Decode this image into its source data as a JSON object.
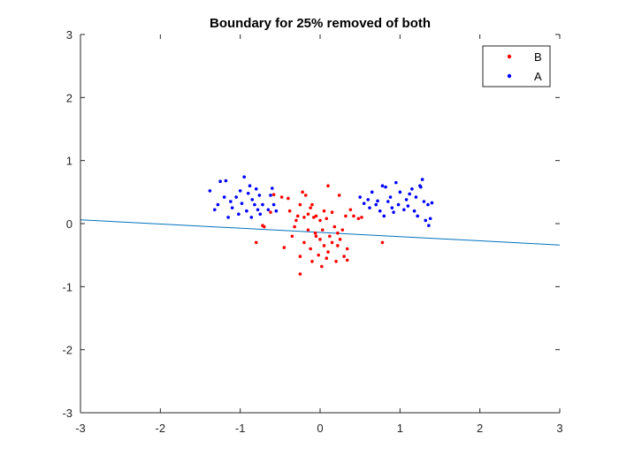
{
  "chart_data": {
    "type": "scatter",
    "title": "Boundary for 25% removed of both",
    "xlabel": "",
    "ylabel": "",
    "xlim": [
      -3,
      3
    ],
    "ylim": [
      -3,
      3
    ],
    "x_ticks": [
      -3,
      -2,
      -1,
      0,
      1,
      2,
      3
    ],
    "y_ticks": [
      -3,
      -2,
      -1,
      0,
      1,
      2,
      3
    ],
    "x_tick_labels": [
      "-3",
      "-2",
      "-1",
      "0",
      "1",
      "2",
      "3"
    ],
    "y_tick_labels": [
      "-3",
      "-2",
      "-1",
      "0",
      "1",
      "2",
      "3"
    ],
    "grid": false,
    "legend_position": "top-right",
    "series": [
      {
        "name": "B",
        "color": "#ff0000",
        "points": [
          [
            -0.8,
            -0.3
          ],
          [
            -0.72,
            -0.03
          ],
          [
            -0.7,
            -0.05
          ],
          [
            -0.62,
            0.18
          ],
          [
            -0.58,
            0.46
          ],
          [
            -0.48,
            0.42
          ],
          [
            -0.45,
            -0.38
          ],
          [
            -0.4,
            0.4
          ],
          [
            -0.38,
            0.2
          ],
          [
            -0.35,
            -0.2
          ],
          [
            -0.3,
            0.05
          ],
          [
            -0.28,
            0.12
          ],
          [
            -0.25,
            -0.52
          ],
          [
            -0.25,
            0.3
          ],
          [
            -0.25,
            -0.8
          ],
          [
            -0.22,
            0.5
          ],
          [
            -0.2,
            0.1
          ],
          [
            -0.2,
            -0.3
          ],
          [
            -0.18,
            0.45
          ],
          [
            -0.15,
            -0.1
          ],
          [
            -0.15,
            0.15
          ],
          [
            -0.12,
            -0.4
          ],
          [
            -0.1,
            0.3
          ],
          [
            -0.1,
            -0.6
          ],
          [
            -0.08,
            0.1
          ],
          [
            -0.06,
            -0.15
          ],
          [
            -0.05,
            0.12
          ],
          [
            -0.02,
            -0.5
          ],
          [
            0.0,
            0.05
          ],
          [
            0.0,
            -0.25
          ],
          [
            0.02,
            -0.68
          ],
          [
            0.03,
            -0.1
          ],
          [
            0.05,
            0.2
          ],
          [
            0.05,
            -0.35
          ],
          [
            0.08,
            0.08
          ],
          [
            0.1,
            -0.45
          ],
          [
            0.1,
            0.6
          ],
          [
            0.12,
            -0.2
          ],
          [
            0.15,
            0.18
          ],
          [
            0.15,
            -0.3
          ],
          [
            0.18,
            -0.05
          ],
          [
            0.2,
            -0.6
          ],
          [
            0.22,
            -0.15
          ],
          [
            0.24,
            0.45
          ],
          [
            0.25,
            -0.25
          ],
          [
            0.28,
            -0.1
          ],
          [
            0.3,
            -0.52
          ],
          [
            0.32,
            0.12
          ],
          [
            0.34,
            -0.4
          ],
          [
            0.38,
            0.22
          ],
          [
            0.42,
            0.12
          ],
          [
            0.48,
            0.08
          ],
          [
            0.52,
            0.1
          ],
          [
            -0.05,
            -0.2
          ],
          [
            0.22,
            -0.35
          ],
          [
            0.34,
            -0.58
          ],
          [
            0.78,
            -0.3
          ],
          [
            -0.32,
            -0.05
          ],
          [
            0.08,
            -0.55
          ],
          [
            -0.12,
            0.25
          ]
        ]
      },
      {
        "name": "A",
        "color": "#0000ff",
        "points": [
          [
            -1.38,
            0.52
          ],
          [
            -1.32,
            0.22
          ],
          [
            -1.28,
            0.3
          ],
          [
            -1.25,
            0.67
          ],
          [
            -1.2,
            0.42
          ],
          [
            -1.18,
            0.68
          ],
          [
            -1.15,
            0.1
          ],
          [
            -1.12,
            0.35
          ],
          [
            -1.1,
            0.25
          ],
          [
            -1.05,
            0.42
          ],
          [
            -1.02,
            0.15
          ],
          [
            -1.0,
            0.52
          ],
          [
            -0.98,
            0.32
          ],
          [
            -0.95,
            0.74
          ],
          [
            -0.92,
            0.2
          ],
          [
            -0.9,
            0.48
          ],
          [
            -0.88,
            0.6
          ],
          [
            -0.86,
            0.1
          ],
          [
            -0.85,
            0.38
          ],
          [
            -0.82,
            0.3
          ],
          [
            -0.8,
            0.55
          ],
          [
            -0.78,
            0.22
          ],
          [
            -0.76,
            0.45
          ],
          [
            -0.75,
            0.15
          ],
          [
            -0.72,
            0.3
          ],
          [
            -0.65,
            0.22
          ],
          [
            -0.62,
            0.45
          ],
          [
            -0.6,
            0.56
          ],
          [
            -0.58,
            0.3
          ],
          [
            -0.55,
            0.2
          ],
          [
            0.5,
            0.42
          ],
          [
            0.55,
            0.32
          ],
          [
            0.6,
            0.38
          ],
          [
            0.62,
            0.25
          ],
          [
            0.65,
            0.5
          ],
          [
            0.7,
            0.3
          ],
          [
            0.75,
            0.2
          ],
          [
            0.78,
            0.6
          ],
          [
            0.8,
            0.12
          ],
          [
            0.82,
            0.58
          ],
          [
            0.85,
            0.35
          ],
          [
            0.88,
            0.42
          ],
          [
            0.9,
            0.25
          ],
          [
            0.92,
            0.18
          ],
          [
            0.95,
            0.65
          ],
          [
            0.98,
            0.3
          ],
          [
            1.0,
            0.5
          ],
          [
            1.05,
            0.22
          ],
          [
            1.08,
            0.38
          ],
          [
            1.1,
            0.28
          ],
          [
            1.15,
            0.55
          ],
          [
            1.18,
            0.2
          ],
          [
            1.2,
            0.42
          ],
          [
            1.22,
            0.12
          ],
          [
            1.25,
            0.6
          ],
          [
            1.28,
            0.7
          ],
          [
            1.3,
            0.35
          ],
          [
            1.32,
            0.05
          ],
          [
            1.35,
            0.3
          ],
          [
            1.38,
            0.08
          ],
          [
            1.4,
            0.33
          ],
          [
            1.36,
            -0.03
          ],
          [
            1.26,
            0.58
          ],
          [
            1.12,
            0.47
          ],
          [
            0.72,
            0.36
          ]
        ]
      }
    ],
    "boundary_line": {
      "color": "#0072bd",
      "points": [
        [
          -3,
          0.06
        ],
        [
          3,
          -0.34
        ]
      ]
    }
  }
}
